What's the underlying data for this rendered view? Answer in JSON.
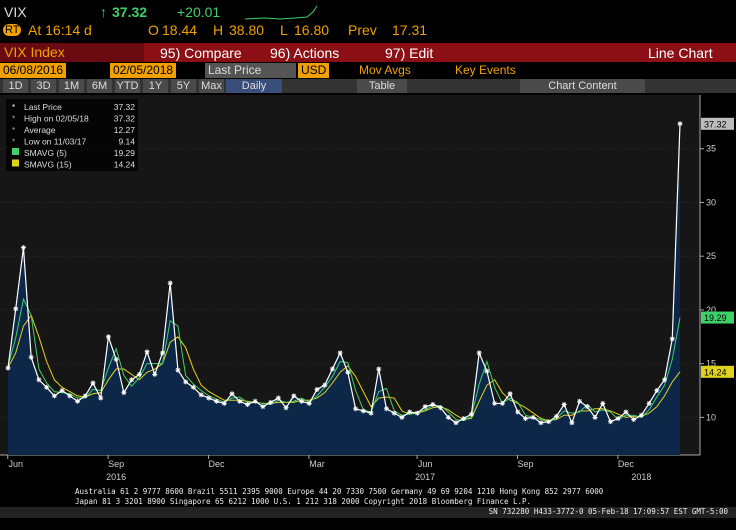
{
  "header": {
    "ticker": "VIX",
    "last": "37.32",
    "change": "+20.01",
    "time": "At 16:14 d",
    "open_label": "O",
    "open": "18.44",
    "high_label": "H",
    "high": "38.80",
    "low_label": "L",
    "low": "16.80",
    "prev_label": "Prev",
    "prev": "17.31"
  },
  "toolbar": {
    "security": "VIX Index",
    "compare": "95) Compare",
    "actions": "96) Actions",
    "edit": "97) Edit",
    "chart_kind": "Line Chart",
    "start_date": "06/08/2016",
    "end_date": "02/05/2018",
    "field": "Last Price",
    "currency": "USD",
    "mov_avgs": "Mov Avgs",
    "key_events": "Key Events",
    "periods": [
      "1D",
      "3D",
      "1M",
      "6M",
      "YTD",
      "1Y",
      "5Y",
      "Max"
    ],
    "frequency": "Daily",
    "table": "Table",
    "chart_content": "Chart Content"
  },
  "legend": [
    {
      "label": "Last Price",
      "value": "37.32"
    },
    {
      "label": "High on 02/05/18",
      "value": "37.32"
    },
    {
      "label": "Average",
      "value": "12.27"
    },
    {
      "label": "Low on 11/03/17",
      "value": "9.14"
    },
    {
      "label": "SMAVG (5)",
      "value": "19.29"
    },
    {
      "label": "SMAVG (15)",
      "value": "14.24"
    }
  ],
  "chart_data": {
    "type": "line",
    "categories": [
      null,
      "Jun",
      null,
      null,
      null,
      null,
      null,
      null,
      null,
      null,
      null,
      null,
      null,
      null,
      "Sep",
      null,
      null,
      null,
      null,
      null,
      null,
      null,
      null,
      null,
      null,
      null,
      null,
      "Dec",
      null,
      null,
      null,
      null,
      null,
      null,
      null,
      null,
      null,
      null,
      null,
      null,
      "Mar",
      null,
      null,
      null,
      null,
      null,
      null,
      null,
      null,
      null,
      null,
      null,
      null,
      null,
      "Jun",
      null,
      null,
      null,
      null,
      null,
      null,
      null,
      null,
      null,
      null,
      null,
      null,
      "Sep",
      null,
      null,
      null,
      null,
      null,
      null,
      null,
      null,
      null,
      null,
      null,
      null,
      "Dec",
      null,
      null,
      null,
      null,
      null,
      null,
      null
    ],
    "years": [
      null,
      null,
      null,
      null,
      null,
      null,
      null,
      null,
      null,
      null,
      null,
      null,
      null,
      null,
      "2016",
      null,
      null,
      null,
      null,
      null,
      null,
      null,
      null,
      null,
      null,
      null,
      null,
      null,
      null,
      null,
      null,
      null,
      null,
      null,
      null,
      null,
      null,
      null,
      null,
      null,
      null,
      null,
      null,
      null,
      null,
      null,
      null,
      null,
      null,
      null,
      null,
      null,
      null,
      null,
      "2017",
      null,
      null,
      null,
      null,
      null,
      null,
      null,
      null,
      null,
      null,
      null,
      null,
      null,
      null,
      null,
      null,
      null,
      null,
      null,
      null,
      null,
      null,
      null,
      null,
      null,
      null,
      null,
      "2018",
      null
    ],
    "series": [
      {
        "name": "Last Price",
        "color": "#ffffff",
        "values": [
          14.6,
          20.1,
          25.8,
          15.6,
          13.5,
          12.8,
          12.0,
          12.5,
          12.0,
          11.5,
          12.0,
          13.2,
          11.8,
          17.5,
          15.4,
          12.3,
          13.5,
          14.0,
          16.1,
          14.0,
          16.0,
          22.5,
          14.4,
          13.3,
          12.8,
          12.1,
          11.8,
          11.5,
          11.3,
          12.2,
          11.5,
          11.2,
          11.5,
          11.0,
          11.4,
          11.8,
          10.9,
          12.0,
          11.5,
          11.3,
          12.6,
          13.0,
          14.5,
          16.0,
          14.2,
          10.8,
          10.6,
          10.4,
          14.5,
          10.8,
          10.4,
          10.0,
          10.5,
          10.4,
          11.0,
          11.2,
          10.9,
          10.0,
          9.5,
          9.9,
          10.3,
          16.0,
          14.3,
          11.3,
          11.3,
          12.2,
          10.5,
          9.9,
          10.0,
          9.5,
          9.6,
          10.1,
          11.2,
          9.5,
          11.5,
          11.0,
          10.0,
          11.3,
          9.6,
          9.9,
          10.5,
          9.8,
          10.2,
          11.3,
          12.5,
          13.5,
          17.31,
          37.32
        ]
      },
      {
        "name": "SMAVG (5)",
        "color": "#3fd06a",
        "values": [
          14.8,
          17.4,
          21.0,
          19.5,
          14.5,
          13.2,
          12.4,
          12.3,
          12.2,
          11.8,
          11.8,
          12.6,
          12.5,
          14.6,
          16.4,
          13.9,
          12.9,
          13.7,
          15.0,
          15.0,
          15.0,
          19.0,
          18.5,
          13.9,
          13.1,
          12.5,
          12.0,
          11.7,
          11.4,
          11.8,
          11.9,
          11.4,
          11.4,
          11.3,
          11.2,
          11.6,
          11.4,
          11.5,
          11.8,
          11.4,
          12.0,
          12.8,
          13.8,
          15.2,
          15.1,
          12.5,
          10.7,
          10.5,
          12.4,
          12.7,
          10.6,
          10.2,
          10.3,
          10.5,
          10.7,
          11.1,
          11.1,
          10.5,
          9.8,
          9.7,
          10.1,
          13.1,
          15.2,
          12.8,
          11.3,
          11.8,
          11.4,
          10.2,
          10.0,
          9.8,
          9.6,
          9.9,
          10.6,
          10.4,
          10.5,
          11.2,
          10.5,
          10.7,
          10.5,
          9.8,
          10.2,
          10.2,
          10.0,
          10.7,
          11.9,
          13.0,
          15.4,
          19.29
        ]
      },
      {
        "name": "SMAVG (15)",
        "color": "#e0d21a",
        "values": [
          14.6,
          16.0,
          18.5,
          19.5,
          17.5,
          15.2,
          13.5,
          12.8,
          12.4,
          12.0,
          11.9,
          12.2,
          12.3,
          13.5,
          14.5,
          14.5,
          14.0,
          13.5,
          14.2,
          14.5,
          15.0,
          17.0,
          17.5,
          16.5,
          14.5,
          13.0,
          12.4,
          12.0,
          11.6,
          11.6,
          11.6,
          11.5,
          11.4,
          11.3,
          11.3,
          11.4,
          11.4,
          11.4,
          11.6,
          11.6,
          11.8,
          12.3,
          13.2,
          14.2,
          14.8,
          13.8,
          12.4,
          11.0,
          11.8,
          11.9,
          11.8,
          10.6,
          10.3,
          10.4,
          10.6,
          10.9,
          11.0,
          10.7,
          10.2,
          9.8,
          9.9,
          11.5,
          13.0,
          13.5,
          12.3,
          11.6,
          11.3,
          10.9,
          10.4,
          9.9,
          9.7,
          9.8,
          10.2,
          10.2,
          10.6,
          10.6,
          10.8,
          10.8,
          10.6,
          10.3,
          10.0,
          10.1,
          10.1,
          10.4,
          11.0,
          12.0,
          13.3,
          14.24
        ]
      }
    ],
    "ylim": [
      6.5,
      40
    ],
    "yticks": [
      10,
      15,
      20,
      25,
      30,
      35
    ],
    "grid": true,
    "legend": "top-left"
  },
  "footer": [
    "Australia 61 2 9777 8600 Brazil 5511 2395 9000 Europe 44 20 7330 7500 Germany 49 69 9204 1210 Hong Kong 852 2977 6000",
    "Japan 81 3 3201 8900         Singapore 65 6212 1000        U.S. 1 212 318 2000          Copyright 2018 Bloomberg Finance L.P.",
    "SN 732280 H433-3772-0 05-Feb-18 17:09:57 EST  GMT-5:00"
  ]
}
